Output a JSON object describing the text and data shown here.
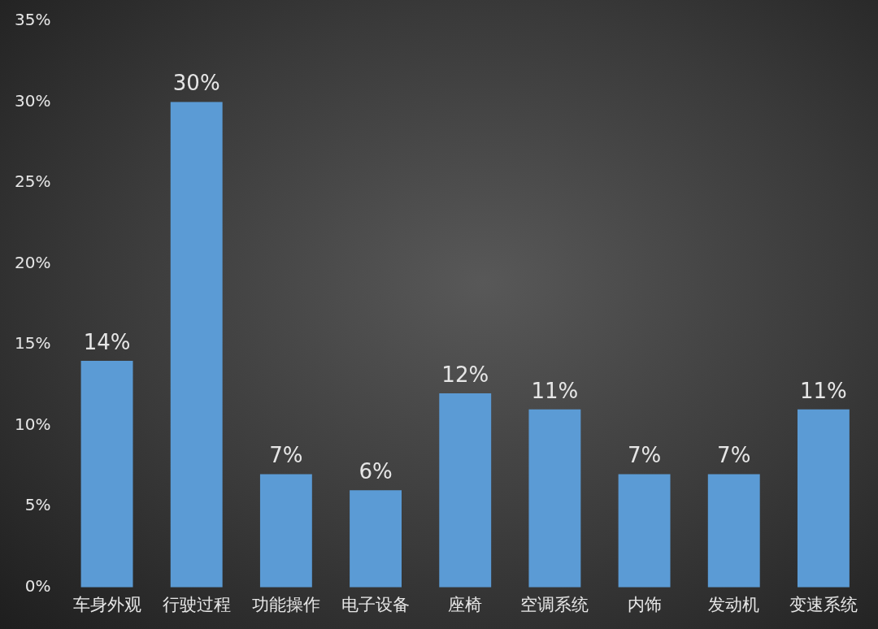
{
  "chart_data": {
    "type": "bar",
    "categories": [
      "车身外观",
      "行驶过程",
      "功能操作",
      "电子设备",
      "座椅",
      "空调系统",
      "内饰",
      "发动机",
      "变速系统"
    ],
    "values": [
      14,
      30,
      7,
      6,
      12,
      11,
      7,
      7,
      11
    ],
    "value_labels": [
      "14%",
      "30%",
      "7%",
      "6%",
      "12%",
      "11%",
      "7%",
      "7%",
      "11%"
    ],
    "color": "#5b9bd5",
    "ylim": [
      0,
      35
    ],
    "yticks": [
      {
        "value": 0,
        "label": "0%"
      },
      {
        "value": 5,
        "label": "5%"
      },
      {
        "value": 10,
        "label": "10%"
      },
      {
        "value": 15,
        "label": "15%"
      },
      {
        "value": 20,
        "label": "20%"
      },
      {
        "value": 25,
        "label": "25%"
      },
      {
        "value": 30,
        "label": "30%"
      },
      {
        "value": 35,
        "label": "35%"
      }
    ],
    "grid": false,
    "legend": false
  }
}
